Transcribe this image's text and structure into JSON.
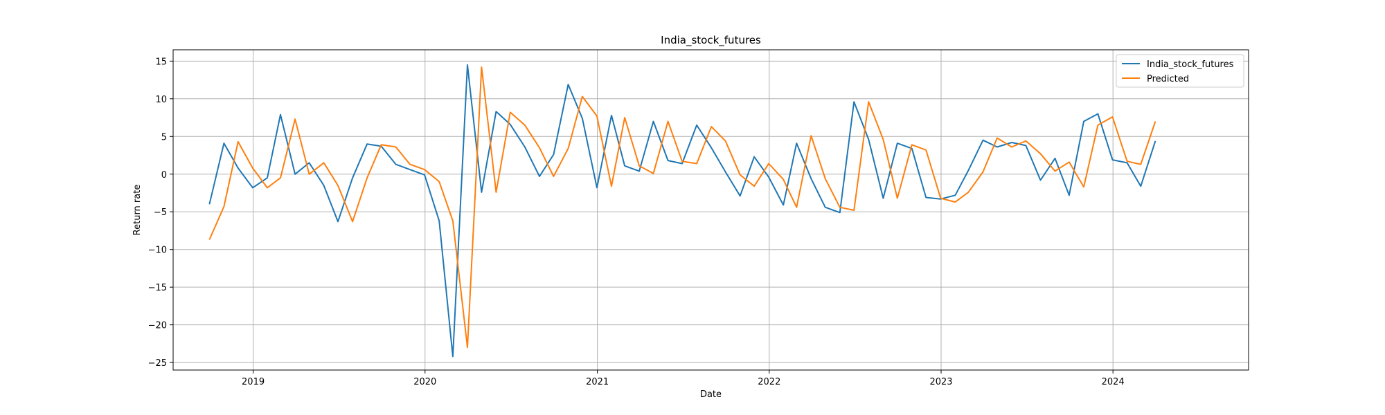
{
  "chart_data": {
    "type": "line",
    "title": "India_stock_futures",
    "xlabel": "Date",
    "ylabel": "Return rate",
    "grid": true,
    "legend_position": "top-right",
    "x_ticks": [
      "2019",
      "2020",
      "2021",
      "2022",
      "2023",
      "2024"
    ],
    "y_ticks": [
      15,
      10,
      5,
      0,
      -5,
      -10,
      -15,
      -20,
      -25
    ],
    "ylim": [
      -26,
      16.5
    ],
    "xlim": [
      "2018-07-15",
      "2024-10-15"
    ],
    "x": [
      "2018-09-30",
      "2018-10-31",
      "2018-11-30",
      "2018-12-31",
      "2019-01-31",
      "2019-02-28",
      "2019-03-31",
      "2019-04-30",
      "2019-05-31",
      "2019-06-30",
      "2019-07-31",
      "2019-08-31",
      "2019-09-30",
      "2019-10-31",
      "2019-11-30",
      "2019-12-31",
      "2020-01-31",
      "2020-02-29",
      "2020-03-31",
      "2020-04-30",
      "2020-05-31",
      "2020-06-30",
      "2020-07-31",
      "2020-08-31",
      "2020-09-30",
      "2020-10-31",
      "2020-11-30",
      "2020-12-31",
      "2021-01-31",
      "2021-02-28",
      "2021-03-31",
      "2021-04-30",
      "2021-05-31",
      "2021-06-30",
      "2021-07-31",
      "2021-08-31",
      "2021-09-30",
      "2021-10-31",
      "2021-11-30",
      "2021-12-31",
      "2022-01-31",
      "2022-02-28",
      "2022-03-31",
      "2022-04-30",
      "2022-05-31",
      "2022-06-30",
      "2022-07-31",
      "2022-08-31",
      "2022-09-30",
      "2022-10-31",
      "2022-11-30",
      "2022-12-31",
      "2023-01-31",
      "2023-02-28",
      "2023-03-31",
      "2023-04-30",
      "2023-05-31",
      "2023-06-30",
      "2023-07-31",
      "2023-08-31",
      "2023-09-30",
      "2023-10-31",
      "2023-11-30",
      "2023-12-31",
      "2024-01-31",
      "2024-02-29",
      "2024-03-31"
    ],
    "series": [
      {
        "name": "India_stock_futures",
        "color": "#1f77b4",
        "values": [
          -4.0,
          4.1,
          0.8,
          -1.8,
          -0.5,
          7.9,
          0.0,
          1.5,
          -1.5,
          -6.3,
          -0.5,
          4.0,
          3.7,
          1.3,
          0.6,
          -0.1,
          -6.2,
          -24.2,
          14.5,
          -2.4,
          8.3,
          6.6,
          3.6,
          -0.3,
          2.6,
          11.9,
          7.4,
          -1.8,
          7.8,
          1.1,
          0.4,
          7.0,
          1.8,
          1.4,
          6.5,
          3.5,
          0.3,
          -2.9,
          2.3,
          -0.4,
          -4.1,
          4.1,
          -0.6,
          -4.4,
          -5.1,
          9.6,
          4.6,
          -3.2,
          4.1,
          3.4,
          -3.1,
          -3.3,
          -2.8,
          0.5,
          4.5,
          3.6,
          4.2,
          3.8,
          -0.8,
          2.1,
          -2.8,
          7.0,
          8.0,
          1.9,
          1.5,
          -1.6,
          4.4
        ]
      },
      {
        "name": "Predicted",
        "color": "#ff7f0e",
        "values": [
          -8.7,
          -4.3,
          4.3,
          0.8,
          -1.8,
          -0.5,
          7.3,
          0.0,
          1.5,
          -1.5,
          -6.3,
          -0.5,
          3.9,
          3.6,
          1.3,
          0.6,
          -1.0,
          -6.2,
          -23.0,
          14.2,
          -2.4,
          8.2,
          6.5,
          3.5,
          -0.3,
          3.4,
          10.3,
          7.7,
          -1.6,
          7.5,
          1.1,
          0.1,
          7.0,
          1.7,
          1.4,
          6.3,
          4.4,
          -0.1,
          -1.6,
          1.4,
          -0.7,
          -4.4,
          5.1,
          -0.6,
          -4.4,
          -4.8,
          9.6,
          4.6,
          -3.2,
          3.9,
          3.2,
          -3.2,
          -3.7,
          -2.4,
          0.3,
          4.8,
          3.6,
          4.4,
          2.7,
          0.4,
          1.6,
          -1.7,
          6.5,
          7.6,
          1.7,
          1.3,
          7.0
        ]
      }
    ]
  }
}
